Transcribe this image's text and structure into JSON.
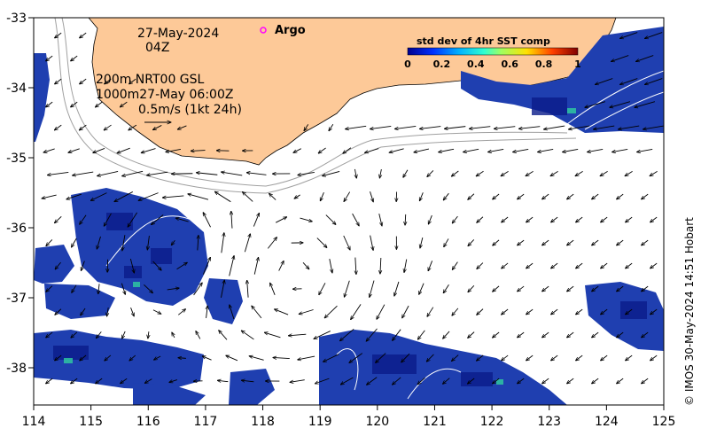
{
  "map": {
    "longitude_ticks": [
      "114",
      "115",
      "116",
      "117",
      "118",
      "119",
      "120",
      "121",
      "122",
      "123",
      "124",
      "125"
    ],
    "latitude_ticks": [
      "-33",
      "-34",
      "-35",
      "-36",
      "-37",
      "-38"
    ],
    "date_line": "27-May-2024",
    "time_line": "04Z",
    "depth_line_1": "200m  NRT00 GSL",
    "depth_line_2": "1000m27-May 06:00Z",
    "scale_label": "0.5m/s (1kt 24h)",
    "argo_label": "Argo",
    "colorbar": {
      "title": "std dev of 4hr SST comp",
      "ticks": [
        "0",
        "0.2",
        "0.4",
        "0.6",
        "0.8",
        "1"
      ]
    },
    "credit": "© IMOS 30-May-2024 14:51 Hobart",
    "colors": {
      "land": "#fdc998",
      "data_blue": "#1f3fb0",
      "data_dark": "#0a1c8a",
      "argo_marker": "#ff00ff"
    }
  }
}
